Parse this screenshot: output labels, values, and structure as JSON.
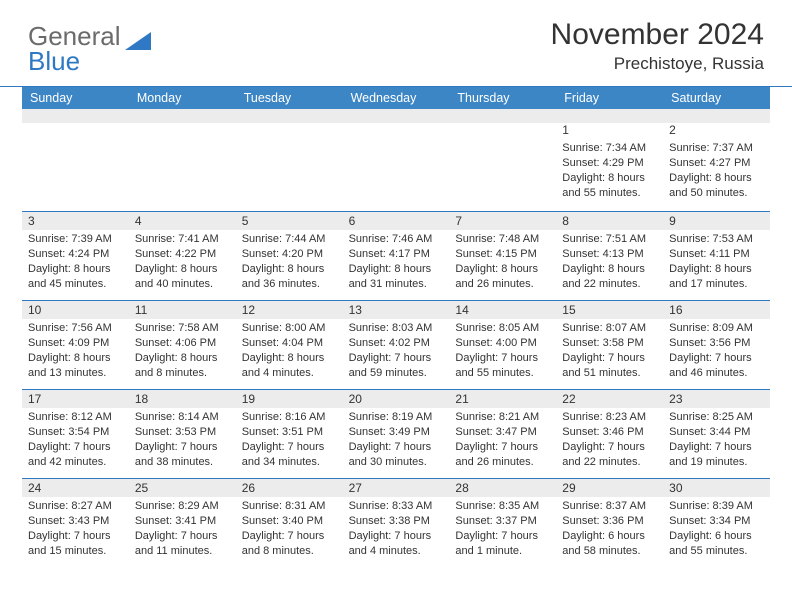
{
  "logo": {
    "text1": "General",
    "text2": "Blue"
  },
  "title": "November 2024",
  "location": "Prechistoye, Russia",
  "colors": {
    "header_bar": "#3d86c6",
    "divider": "#2f78c4",
    "grey": "#ececec",
    "text": "#333333",
    "logo_grey": "#6b6b6b",
    "logo_blue": "#2f78c4"
  },
  "day_headers": [
    "Sunday",
    "Monday",
    "Tuesday",
    "Wednesday",
    "Thursday",
    "Friday",
    "Saturday"
  ],
  "weeks": [
    [
      {
        "n": "",
        "sr": "",
        "ss": "",
        "dl": ""
      },
      {
        "n": "",
        "sr": "",
        "ss": "",
        "dl": ""
      },
      {
        "n": "",
        "sr": "",
        "ss": "",
        "dl": ""
      },
      {
        "n": "",
        "sr": "",
        "ss": "",
        "dl": ""
      },
      {
        "n": "",
        "sr": "",
        "ss": "",
        "dl": ""
      },
      {
        "n": "1",
        "sr": "Sunrise: 7:34 AM",
        "ss": "Sunset: 4:29 PM",
        "dl": "Daylight: 8 hours and 55 minutes."
      },
      {
        "n": "2",
        "sr": "Sunrise: 7:37 AM",
        "ss": "Sunset: 4:27 PM",
        "dl": "Daylight: 8 hours and 50 minutes."
      }
    ],
    [
      {
        "n": "3",
        "sr": "Sunrise: 7:39 AM",
        "ss": "Sunset: 4:24 PM",
        "dl": "Daylight: 8 hours and 45 minutes."
      },
      {
        "n": "4",
        "sr": "Sunrise: 7:41 AM",
        "ss": "Sunset: 4:22 PM",
        "dl": "Daylight: 8 hours and 40 minutes."
      },
      {
        "n": "5",
        "sr": "Sunrise: 7:44 AM",
        "ss": "Sunset: 4:20 PM",
        "dl": "Daylight: 8 hours and 36 minutes."
      },
      {
        "n": "6",
        "sr": "Sunrise: 7:46 AM",
        "ss": "Sunset: 4:17 PM",
        "dl": "Daylight: 8 hours and 31 minutes."
      },
      {
        "n": "7",
        "sr": "Sunrise: 7:48 AM",
        "ss": "Sunset: 4:15 PM",
        "dl": "Daylight: 8 hours and 26 minutes."
      },
      {
        "n": "8",
        "sr": "Sunrise: 7:51 AM",
        "ss": "Sunset: 4:13 PM",
        "dl": "Daylight: 8 hours and 22 minutes."
      },
      {
        "n": "9",
        "sr": "Sunrise: 7:53 AM",
        "ss": "Sunset: 4:11 PM",
        "dl": "Daylight: 8 hours and 17 minutes."
      }
    ],
    [
      {
        "n": "10",
        "sr": "Sunrise: 7:56 AM",
        "ss": "Sunset: 4:09 PM",
        "dl": "Daylight: 8 hours and 13 minutes."
      },
      {
        "n": "11",
        "sr": "Sunrise: 7:58 AM",
        "ss": "Sunset: 4:06 PM",
        "dl": "Daylight: 8 hours and 8 minutes."
      },
      {
        "n": "12",
        "sr": "Sunrise: 8:00 AM",
        "ss": "Sunset: 4:04 PM",
        "dl": "Daylight: 8 hours and 4 minutes."
      },
      {
        "n": "13",
        "sr": "Sunrise: 8:03 AM",
        "ss": "Sunset: 4:02 PM",
        "dl": "Daylight: 7 hours and 59 minutes."
      },
      {
        "n": "14",
        "sr": "Sunrise: 8:05 AM",
        "ss": "Sunset: 4:00 PM",
        "dl": "Daylight: 7 hours and 55 minutes."
      },
      {
        "n": "15",
        "sr": "Sunrise: 8:07 AM",
        "ss": "Sunset: 3:58 PM",
        "dl": "Daylight: 7 hours and 51 minutes."
      },
      {
        "n": "16",
        "sr": "Sunrise: 8:09 AM",
        "ss": "Sunset: 3:56 PM",
        "dl": "Daylight: 7 hours and 46 minutes."
      }
    ],
    [
      {
        "n": "17",
        "sr": "Sunrise: 8:12 AM",
        "ss": "Sunset: 3:54 PM",
        "dl": "Daylight: 7 hours and 42 minutes."
      },
      {
        "n": "18",
        "sr": "Sunrise: 8:14 AM",
        "ss": "Sunset: 3:53 PM",
        "dl": "Daylight: 7 hours and 38 minutes."
      },
      {
        "n": "19",
        "sr": "Sunrise: 8:16 AM",
        "ss": "Sunset: 3:51 PM",
        "dl": "Daylight: 7 hours and 34 minutes."
      },
      {
        "n": "20",
        "sr": "Sunrise: 8:19 AM",
        "ss": "Sunset: 3:49 PM",
        "dl": "Daylight: 7 hours and 30 minutes."
      },
      {
        "n": "21",
        "sr": "Sunrise: 8:21 AM",
        "ss": "Sunset: 3:47 PM",
        "dl": "Daylight: 7 hours and 26 minutes."
      },
      {
        "n": "22",
        "sr": "Sunrise: 8:23 AM",
        "ss": "Sunset: 3:46 PM",
        "dl": "Daylight: 7 hours and 22 minutes."
      },
      {
        "n": "23",
        "sr": "Sunrise: 8:25 AM",
        "ss": "Sunset: 3:44 PM",
        "dl": "Daylight: 7 hours and 19 minutes."
      }
    ],
    [
      {
        "n": "24",
        "sr": "Sunrise: 8:27 AM",
        "ss": "Sunset: 3:43 PM",
        "dl": "Daylight: 7 hours and 15 minutes."
      },
      {
        "n": "25",
        "sr": "Sunrise: 8:29 AM",
        "ss": "Sunset: 3:41 PM",
        "dl": "Daylight: 7 hours and 11 minutes."
      },
      {
        "n": "26",
        "sr": "Sunrise: 8:31 AM",
        "ss": "Sunset: 3:40 PM",
        "dl": "Daylight: 7 hours and 8 minutes."
      },
      {
        "n": "27",
        "sr": "Sunrise: 8:33 AM",
        "ss": "Sunset: 3:38 PM",
        "dl": "Daylight: 7 hours and 4 minutes."
      },
      {
        "n": "28",
        "sr": "Sunrise: 8:35 AM",
        "ss": "Sunset: 3:37 PM",
        "dl": "Daylight: 7 hours and 1 minute."
      },
      {
        "n": "29",
        "sr": "Sunrise: 8:37 AM",
        "ss": "Sunset: 3:36 PM",
        "dl": "Daylight: 6 hours and 58 minutes."
      },
      {
        "n": "30",
        "sr": "Sunrise: 8:39 AM",
        "ss": "Sunset: 3:34 PM",
        "dl": "Daylight: 6 hours and 55 minutes."
      }
    ]
  ]
}
